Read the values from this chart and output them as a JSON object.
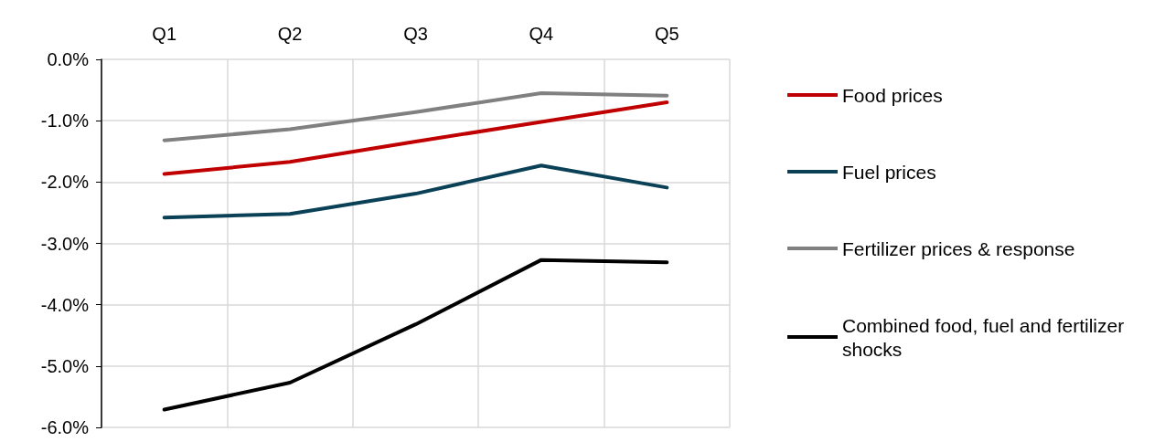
{
  "chart_data": {
    "type": "line",
    "categories": [
      "Q1",
      "Q2",
      "Q3",
      "Q4",
      "Q5"
    ],
    "series": [
      {
        "name": "Food prices",
        "color": "#c00000",
        "values": [
          -1.87,
          -1.67,
          -1.34,
          -1.02,
          -0.7
        ]
      },
      {
        "name": "Fuel prices",
        "color": "#0b4157",
        "values": [
          -2.58,
          -2.52,
          -2.19,
          -1.73,
          -2.09
        ]
      },
      {
        "name": "Fertilizer prices & response",
        "color": "#808080",
        "values": [
          -1.32,
          -1.14,
          -0.86,
          -0.55,
          -0.59
        ]
      },
      {
        "name": "Combined food, fuel and fertilizer shocks",
        "color": "#000000",
        "values": [
          -5.71,
          -5.27,
          -4.32,
          -3.27,
          -3.31
        ]
      }
    ],
    "ylim": [
      -6,
      0
    ],
    "yticks": [
      {
        "value": -6,
        "label": "-6.0%"
      },
      {
        "value": -5,
        "label": "-5.0%"
      },
      {
        "value": -4,
        "label": "-4.0%"
      },
      {
        "value": -3,
        "label": "-3.0%"
      },
      {
        "value": -2,
        "label": "-2.0%"
      },
      {
        "value": -1,
        "label": "-1.0%"
      },
      {
        "value": 0,
        "label": "0.0%"
      }
    ],
    "grid": true,
    "legend": "right",
    "marker": "none",
    "line_style": "solid"
  }
}
